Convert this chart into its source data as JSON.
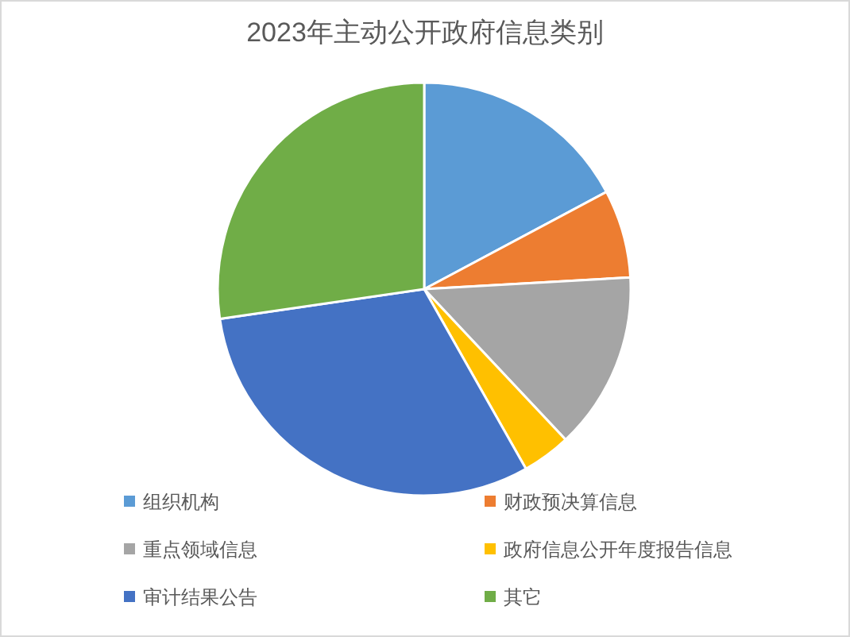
{
  "chart_data": {
    "type": "pie",
    "title": "2023年主动公开政府信息类别",
    "categories": [
      "组织机构",
      "财政预决算信息",
      "重点领域信息",
      "政府信息公开年度报告信息",
      "审计结果公告",
      "其它"
    ],
    "values": [
      17.2,
      6.9,
      13.9,
      3.8,
      30.9,
      27.3
    ],
    "colors": [
      "#5b9bd5",
      "#ed7d31",
      "#a5a5a5",
      "#ffc000",
      "#4472c4",
      "#70ad47"
    ],
    "legend": "bottom"
  }
}
